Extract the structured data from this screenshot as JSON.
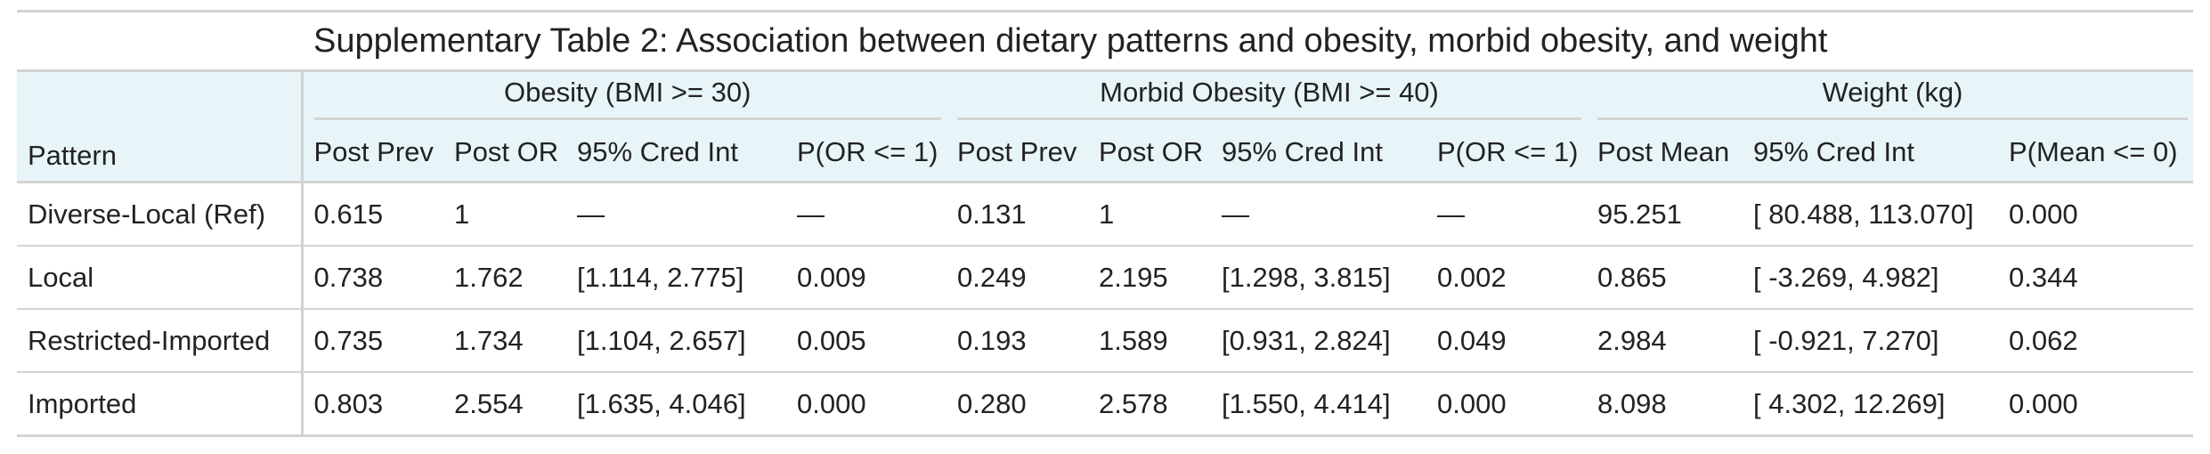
{
  "table": {
    "title": "Supplementary Table 2: Association between dietary patterns and obesity, morbid obesity, and weight",
    "stub_header": "Pattern",
    "spanners": [
      {
        "label": "Obesity (BMI >= 30)"
      },
      {
        "label": "Morbid Obesity (BMI >= 40)"
      },
      {
        "label": "Weight (kg)"
      }
    ],
    "columns": [
      "Post Prev",
      "Post OR",
      "95% Cred Int",
      "P(OR <= 1)",
      "Post Prev",
      "Post OR",
      "95% Cred Int",
      "P(OR <= 1)",
      "Post Mean",
      "95% Cred Int",
      "P(Mean <= 0)"
    ],
    "rows": [
      {
        "pattern": "Diverse-Local (Ref)",
        "cells": [
          "0.615",
          "1",
          "—",
          "—",
          "0.131",
          "1",
          "—",
          "—",
          "95.251",
          "[ 80.488, 113.070]",
          "0.000"
        ],
        "bold": [
          false,
          false,
          false,
          false,
          false,
          false,
          false,
          false,
          false,
          false,
          false
        ]
      },
      {
        "pattern": "Local",
        "cells": [
          "0.738",
          "1.762",
          "[1.114, 2.775]",
          "0.009",
          "0.249",
          "2.195",
          "[1.298, 3.815]",
          "0.002",
          "0.865",
          "[ -3.269, 4.982]",
          "0.344"
        ],
        "bold": [
          false,
          true,
          true,
          true,
          false,
          true,
          true,
          true,
          false,
          false,
          false
        ]
      },
      {
        "pattern": "Restricted-Imported",
        "cells": [
          "0.735",
          "1.734",
          "[1.104, 2.657]",
          "0.005",
          "0.193",
          "1.589",
          "[0.931, 2.824]",
          "0.049",
          "2.984",
          "[ -0.921, 7.270]",
          "0.062"
        ],
        "bold": [
          false,
          true,
          true,
          true,
          false,
          false,
          false,
          false,
          false,
          false,
          false
        ]
      },
      {
        "pattern": "Imported",
        "cells": [
          "0.803",
          "2.554",
          "[1.635, 4.046]",
          "0.000",
          "0.280",
          "2.578",
          "[1.550, 4.414]",
          "0.000",
          "8.098",
          "[ 4.302, 12.269]",
          "0.000"
        ],
        "bold": [
          false,
          true,
          true,
          true,
          false,
          true,
          true,
          true,
          true,
          true,
          true
        ]
      }
    ]
  }
}
